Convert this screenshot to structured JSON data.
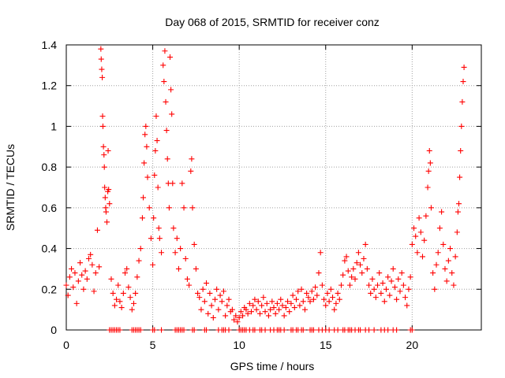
{
  "chart_data": {
    "type": "scatter",
    "title": "Day 068 of 2015, SRMTID for receiver conz",
    "xlabel": "GPS time / hours",
    "ylabel": "SRMTID / TECUs",
    "xlim": [
      0,
      24
    ],
    "ylim": [
      0,
      1.4
    ],
    "xticks": [
      0,
      5,
      10,
      15,
      20
    ],
    "xtick_labels": [
      "0",
      "5",
      "10",
      "15",
      "20"
    ],
    "yticks": [
      0,
      0.2,
      0.4,
      0.6,
      0.8,
      1.0,
      1.2,
      1.4
    ],
    "ytick_labels": [
      "0",
      "0.2",
      "0.4",
      "0.6",
      "0.8",
      "1",
      "1.2",
      "1.4"
    ],
    "grid": true,
    "marker": "+",
    "series": [
      {
        "name": "SRMTID",
        "color": "#ff0000",
        "points": [
          [
            0.0,
            0.22
          ],
          [
            0.1,
            0.17
          ],
          [
            0.2,
            0.26
          ],
          [
            0.3,
            0.3
          ],
          [
            0.4,
            0.21
          ],
          [
            0.5,
            0.28
          ],
          [
            0.6,
            0.13
          ],
          [
            0.7,
            0.24
          ],
          [
            0.8,
            0.33
          ],
          [
            0.9,
            0.27
          ],
          [
            1.0,
            0.2
          ],
          [
            1.1,
            0.29
          ],
          [
            1.2,
            0.25
          ],
          [
            1.3,
            0.35
          ],
          [
            1.4,
            0.37
          ],
          [
            1.5,
            0.32
          ],
          [
            1.6,
            0.19
          ],
          [
            1.7,
            0.28
          ],
          [
            1.8,
            0.49
          ],
          [
            1.9,
            0.31
          ],
          [
            2.0,
            1.38
          ],
          [
            2.02,
            1.33
          ],
          [
            2.05,
            1.28
          ],
          [
            2.08,
            1.24
          ],
          [
            2.1,
            1.05
          ],
          [
            2.12,
            1.0
          ],
          [
            2.15,
            0.9
          ],
          [
            2.18,
            0.86
          ],
          [
            2.2,
            0.8
          ],
          [
            2.22,
            0.7
          ],
          [
            2.25,
            0.65
          ],
          [
            2.28,
            0.6
          ],
          [
            2.3,
            0.58
          ],
          [
            2.35,
            0.53
          ],
          [
            2.4,
            0.68
          ],
          [
            2.42,
            0.88
          ],
          [
            2.45,
            0.69
          ],
          [
            2.5,
            0.62
          ],
          [
            2.6,
            0.25
          ],
          [
            2.7,
            0.18
          ],
          [
            2.8,
            0.12
          ],
          [
            2.9,
            0.15
          ],
          [
            3.0,
            0.22
          ],
          [
            3.1,
            0.14
          ],
          [
            3.2,
            0.11
          ],
          [
            3.3,
            0.18
          ],
          [
            3.4,
            0.28
          ],
          [
            3.5,
            0.3
          ],
          [
            3.6,
            0.21
          ],
          [
            3.7,
            0.16
          ],
          [
            3.8,
            0.1
          ],
          [
            3.9,
            0.13
          ],
          [
            4.0,
            0.18
          ],
          [
            4.1,
            0.26
          ],
          [
            4.2,
            0.34
          ],
          [
            4.3,
            0.4
          ],
          [
            4.4,
            0.55
          ],
          [
            4.45,
            0.65
          ],
          [
            4.5,
            0.82
          ],
          [
            4.55,
            0.96
          ],
          [
            4.6,
            1.0
          ],
          [
            4.65,
            0.9
          ],
          [
            4.7,
            0.75
          ],
          [
            4.8,
            0.6
          ],
          [
            4.9,
            0.45
          ],
          [
            5.0,
            0.32
          ],
          [
            5.05,
            0.55
          ],
          [
            5.1,
            0.76
          ],
          [
            5.15,
            0.88
          ],
          [
            5.2,
            1.05
          ],
          [
            5.25,
            0.93
          ],
          [
            5.3,
            0.7
          ],
          [
            5.35,
            0.5
          ],
          [
            5.4,
            0.45
          ],
          [
            5.5,
            0.38
          ],
          [
            5.6,
            1.3
          ],
          [
            5.65,
            1.22
          ],
          [
            5.7,
            1.37
          ],
          [
            5.75,
            1.12
          ],
          [
            5.8,
            0.98
          ],
          [
            5.85,
            0.84
          ],
          [
            5.9,
            0.72
          ],
          [
            5.95,
            0.6
          ],
          [
            6.0,
            1.34
          ],
          [
            6.05,
            1.18
          ],
          [
            6.1,
            1.06
          ],
          [
            6.15,
            0.72
          ],
          [
            6.2,
            0.5
          ],
          [
            6.3,
            0.38
          ],
          [
            6.4,
            0.45
          ],
          [
            6.5,
            0.3
          ],
          [
            6.6,
            0.4
          ],
          [
            6.7,
            0.72
          ],
          [
            6.8,
            0.6
          ],
          [
            6.9,
            0.35
          ],
          [
            7.0,
            0.25
          ],
          [
            7.1,
            0.22
          ],
          [
            7.2,
            0.78
          ],
          [
            7.25,
            0.84
          ],
          [
            7.3,
            0.6
          ],
          [
            7.4,
            0.42
          ],
          [
            7.5,
            0.3
          ],
          [
            7.6,
            0.18
          ],
          [
            7.7,
            0.16
          ],
          [
            7.8,
            0.1
          ],
          [
            7.9,
            0.2
          ],
          [
            8.0,
            0.14
          ],
          [
            8.1,
            0.23
          ],
          [
            8.2,
            0.08
          ],
          [
            8.3,
            0.18
          ],
          [
            8.4,
            0.12
          ],
          [
            8.5,
            0.06
          ],
          [
            8.6,
            0.15
          ],
          [
            8.7,
            0.2
          ],
          [
            8.8,
            0.1
          ],
          [
            8.9,
            0.17
          ],
          [
            9.0,
            0.14
          ],
          [
            9.1,
            0.19
          ],
          [
            9.2,
            0.07
          ],
          [
            9.3,
            0.12
          ],
          [
            9.4,
            0.15
          ],
          [
            9.5,
            0.09
          ],
          [
            9.6,
            0.1
          ],
          [
            9.7,
            0.05
          ],
          [
            9.8,
            0.07
          ],
          [
            9.9,
            0.04
          ],
          [
            10.0,
            0.06
          ],
          [
            10.1,
            0.09
          ],
          [
            10.2,
            0.07
          ],
          [
            10.3,
            0.11
          ],
          [
            10.4,
            0.1
          ],
          [
            10.5,
            0.08
          ],
          [
            10.6,
            0.13
          ],
          [
            10.7,
            0.09
          ],
          [
            10.8,
            0.12
          ],
          [
            10.9,
            0.15
          ],
          [
            11.0,
            0.1
          ],
          [
            11.1,
            0.14
          ],
          [
            11.2,
            0.08
          ],
          [
            11.3,
            0.12
          ],
          [
            11.4,
            0.16
          ],
          [
            11.5,
            0.09
          ],
          [
            11.6,
            0.13
          ],
          [
            11.7,
            0.07
          ],
          [
            11.8,
            0.1
          ],
          [
            11.9,
            0.14
          ],
          [
            12.0,
            0.11
          ],
          [
            12.1,
            0.08
          ],
          [
            12.2,
            0.13
          ],
          [
            12.3,
            0.1
          ],
          [
            12.4,
            0.15
          ],
          [
            12.5,
            0.12
          ],
          [
            12.6,
            0.07
          ],
          [
            12.7,
            0.11
          ],
          [
            12.8,
            0.14
          ],
          [
            12.9,
            0.09
          ],
          [
            13.0,
            0.13
          ],
          [
            13.1,
            0.17
          ],
          [
            13.2,
            0.11
          ],
          [
            13.3,
            0.15
          ],
          [
            13.4,
            0.19
          ],
          [
            13.5,
            0.12
          ],
          [
            13.6,
            0.2
          ],
          [
            13.7,
            0.14
          ],
          [
            13.8,
            0.1
          ],
          [
            13.9,
            0.18
          ],
          [
            14.0,
            0.16
          ],
          [
            14.1,
            0.14
          ],
          [
            14.2,
            0.19
          ],
          [
            14.3,
            0.15
          ],
          [
            14.4,
            0.21
          ],
          [
            14.5,
            0.17
          ],
          [
            14.6,
            0.28
          ],
          [
            14.7,
            0.38
          ],
          [
            14.8,
            0.22
          ],
          [
            14.9,
            0.15
          ],
          [
            15.0,
            0.12
          ],
          [
            15.1,
            0.18
          ],
          [
            15.2,
            0.14
          ],
          [
            15.3,
            0.2
          ],
          [
            15.4,
            0.16
          ],
          [
            15.5,
            0.1
          ],
          [
            15.6,
            0.13
          ],
          [
            15.7,
            0.18
          ],
          [
            15.8,
            0.15
          ],
          [
            15.9,
            0.22
          ],
          [
            16.0,
            0.27
          ],
          [
            16.1,
            0.34
          ],
          [
            16.2,
            0.36
          ],
          [
            16.3,
            0.29
          ],
          [
            16.4,
            0.22
          ],
          [
            16.5,
            0.26
          ],
          [
            16.6,
            0.3
          ],
          [
            16.7,
            0.25
          ],
          [
            16.8,
            0.33
          ],
          [
            16.9,
            0.38
          ],
          [
            17.0,
            0.32
          ],
          [
            17.1,
            0.28
          ],
          [
            17.2,
            0.35
          ],
          [
            17.3,
            0.42
          ],
          [
            17.4,
            0.3
          ],
          [
            17.5,
            0.22
          ],
          [
            17.6,
            0.18
          ],
          [
            17.7,
            0.25
          ],
          [
            17.8,
            0.2
          ],
          [
            17.9,
            0.16
          ],
          [
            18.0,
            0.22
          ],
          [
            18.1,
            0.28
          ],
          [
            18.2,
            0.18
          ],
          [
            18.3,
            0.23
          ],
          [
            18.4,
            0.14
          ],
          [
            18.5,
            0.2
          ],
          [
            18.6,
            0.26
          ],
          [
            18.7,
            0.17
          ],
          [
            18.8,
            0.24
          ],
          [
            18.9,
            0.3
          ],
          [
            19.0,
            0.21
          ],
          [
            19.1,
            0.15
          ],
          [
            19.2,
            0.25
          ],
          [
            19.3,
            0.19
          ],
          [
            19.4,
            0.28
          ],
          [
            19.5,
            0.22
          ],
          [
            19.6,
            0.16
          ],
          [
            19.7,
            0.12
          ],
          [
            19.8,
            0.2
          ],
          [
            19.9,
            0.26
          ],
          [
            20.0,
            0.42
          ],
          [
            20.1,
            0.5
          ],
          [
            20.2,
            0.46
          ],
          [
            20.3,
            0.38
          ],
          [
            20.4,
            0.55
          ],
          [
            20.5,
            0.48
          ],
          [
            20.6,
            0.36
          ],
          [
            20.7,
            0.44
          ],
          [
            20.8,
            0.56
          ],
          [
            20.9,
            0.7
          ],
          [
            20.95,
            0.78
          ],
          [
            21.0,
            0.88
          ],
          [
            21.05,
            0.82
          ],
          [
            21.1,
            0.6
          ],
          [
            21.2,
            0.28
          ],
          [
            21.3,
            0.2
          ],
          [
            21.4,
            0.32
          ],
          [
            21.5,
            0.38
          ],
          [
            21.6,
            0.5
          ],
          [
            21.7,
            0.58
          ],
          [
            21.8,
            0.42
          ],
          [
            21.9,
            0.3
          ],
          [
            22.0,
            0.24
          ],
          [
            22.1,
            0.34
          ],
          [
            22.2,
            0.4
          ],
          [
            22.3,
            0.28
          ],
          [
            22.4,
            0.22
          ],
          [
            22.5,
            0.36
          ],
          [
            22.6,
            0.48
          ],
          [
            22.65,
            0.58
          ],
          [
            22.7,
            0.62
          ],
          [
            22.75,
            0.75
          ],
          [
            22.8,
            0.88
          ],
          [
            22.85,
            1.0
          ],
          [
            22.9,
            1.12
          ],
          [
            22.95,
            1.22
          ],
          [
            23.0,
            1.29
          ]
        ]
      }
    ],
    "zero_points_x": [
      2.5,
      2.6,
      2.7,
      2.8,
      2.9,
      3.0,
      3.1,
      3.8,
      3.9,
      4.0,
      4.1,
      4.2,
      4.3,
      5.0,
      5.1,
      5.5,
      6.3,
      6.4,
      6.5,
      6.6,
      6.7,
      6.8,
      7.3,
      7.4,
      8.0,
      8.1,
      8.8,
      9.0,
      9.1,
      9.2,
      9.4,
      10.0,
      10.1,
      10.2,
      10.3,
      10.4,
      10.6,
      10.8,
      10.9,
      11.2,
      11.3,
      11.5,
      11.8,
      12.0,
      12.2,
      12.3,
      12.4,
      12.6,
      13.0,
      13.1,
      13.3,
      13.4,
      13.6,
      13.7,
      14.1,
      14.2,
      14.3,
      14.6,
      14.8,
      15.0,
      15.2,
      15.5,
      15.7,
      16.0,
      16.1,
      16.3,
      16.4,
      16.5,
      16.7,
      16.9,
      17.0,
      17.3,
      17.5,
      17.8,
      18.2,
      18.4,
      18.6,
      18.9,
      19.1,
      19.9,
      20.0
    ]
  }
}
